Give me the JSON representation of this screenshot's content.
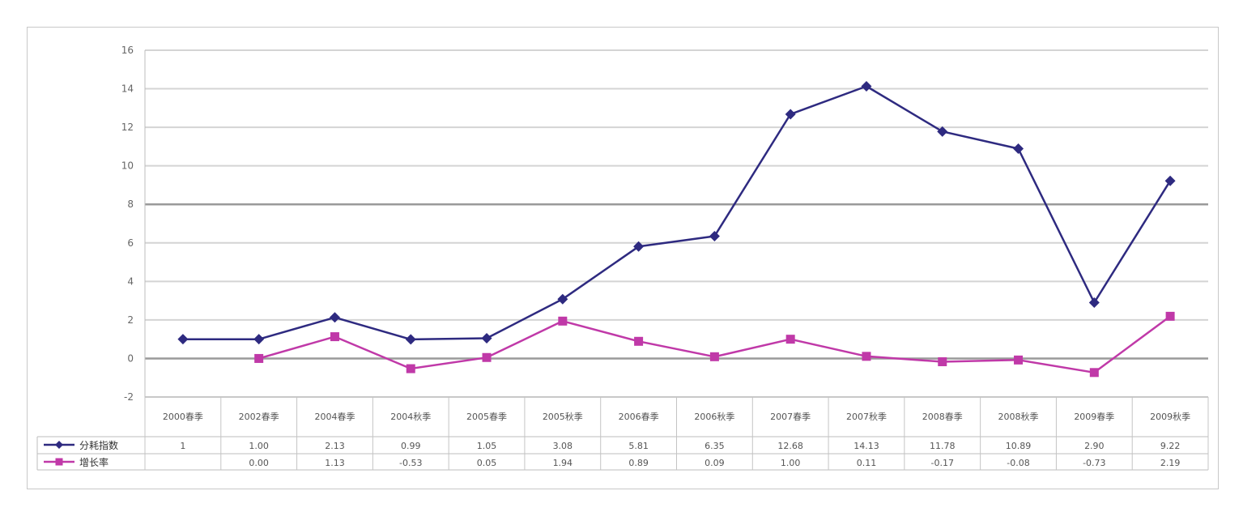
{
  "chart_data": {
    "type": "line",
    "title": "",
    "xlabel": "",
    "ylabel": "",
    "ylim": [
      -2,
      16
    ],
    "yticks": [
      -2,
      0,
      2,
      4,
      6,
      8,
      10,
      12,
      14,
      16
    ],
    "grid": true,
    "legend_position": "bottom-left (inside data table)",
    "categories": [
      "2000春季",
      "2002春季",
      "2004春季",
      "2004秋季",
      "2005春季",
      "2005秋季",
      "2006春季",
      "2006秋季",
      "2007春季",
      "2007秋季",
      "2008春季",
      "2008秋季",
      "2009春季",
      "2009秋季"
    ],
    "series": [
      {
        "name": "分耗指数",
        "color": "#2e2a80",
        "marker": "diamond",
        "values": [
          1,
          1.0,
          2.13,
          0.99,
          1.05,
          3.08,
          5.81,
          6.35,
          12.68,
          14.13,
          11.78,
          10.89,
          2.9,
          9.22
        ],
        "labels": [
          "1",
          "1.00",
          "2.13",
          "0.99",
          "1.05",
          "3.08",
          "5.81",
          "6.35",
          "12.68",
          "14.13",
          "11.78",
          "10.89",
          "2.90",
          "9.22"
        ]
      },
      {
        "name": "增长率",
        "color": "#c039a8",
        "marker": "square",
        "values": [
          null,
          0.0,
          1.13,
          -0.53,
          0.05,
          1.94,
          0.89,
          0.09,
          1.0,
          0.11,
          -0.17,
          -0.08,
          -0.73,
          2.19
        ],
        "labels": [
          "",
          "0.00",
          "1.13",
          "-0.53",
          "0.05",
          "1.94",
          "0.89",
          "0.09",
          "1.00",
          "0.11",
          "-0.17",
          "-0.08",
          "-0.73",
          "2.19"
        ]
      }
    ]
  }
}
